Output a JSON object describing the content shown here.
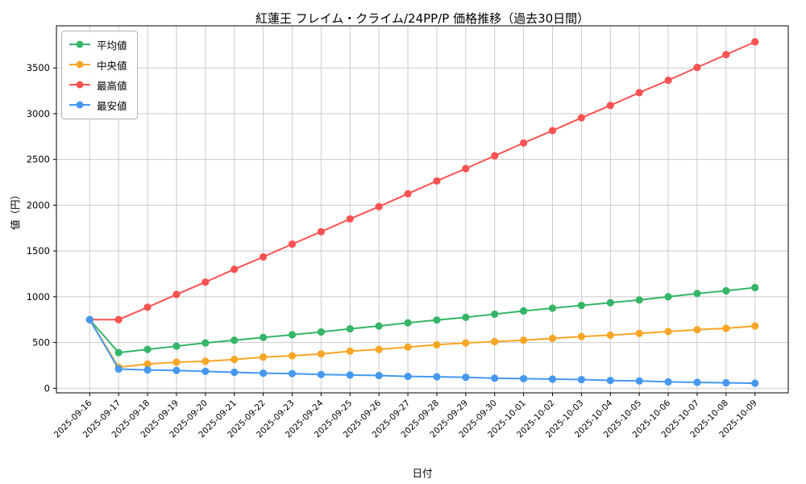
{
  "chart_data": {
    "type": "line",
    "title": "紅蓮王 フレイム・クライム/24PP/P 価格推移（過去30日間）",
    "xlabel": "日付",
    "ylabel": "値（円）",
    "grid": true,
    "legend_position": "upper-left",
    "ylim": [
      -50,
      3960
    ],
    "yticks": [
      0,
      500,
      1000,
      1500,
      2000,
      2500,
      3000,
      3500
    ],
    "x": [
      "2025-09-16",
      "2025-09-17",
      "2025-09-18",
      "2025-09-19",
      "2025-09-20",
      "2025-09-21",
      "2025-09-22",
      "2025-09-23",
      "2025-09-24",
      "2025-09-25",
      "2025-09-26",
      "2025-09-27",
      "2025-09-28",
      "2025-09-29",
      "2025-09-30",
      "2025-10-01",
      "2025-10-02",
      "2025-10-03",
      "2025-10-04",
      "2025-10-05",
      "2025-10-06",
      "2025-10-07",
      "2025-10-08",
      "2025-10-09"
    ],
    "series": [
      {
        "name": "平均値",
        "color": "#35b567",
        "values": [
          750,
          390,
          425,
          460,
          495,
          525,
          555,
          585,
          615,
          650,
          680,
          715,
          745,
          775,
          810,
          845,
          875,
          905,
          935,
          965,
          1000,
          1035,
          1065,
          1100
        ]
      },
      {
        "name": "中央値",
        "color": "#f8a626",
        "values": [
          750,
          230,
          265,
          285,
          295,
          315,
          340,
          355,
          375,
          405,
          425,
          450,
          475,
          495,
          510,
          525,
          545,
          565,
          580,
          600,
          620,
          640,
          655,
          680
        ]
      },
      {
        "name": "最高値",
        "color": "#fa5252",
        "values": [
          750,
          750,
          885,
          1025,
          1160,
          1300,
          1435,
          1575,
          1710,
          1850,
          1985,
          2125,
          2265,
          2400,
          2540,
          2680,
          2815,
          2955,
          3090,
          3230,
          3365,
          3505,
          3645,
          3785
        ]
      },
      {
        "name": "最安値",
        "color": "#4598f0",
        "values": [
          750,
          210,
          200,
          195,
          185,
          175,
          165,
          160,
          150,
          145,
          140,
          130,
          125,
          120,
          110,
          105,
          100,
          95,
          85,
          80,
          70,
          65,
          60,
          55
        ]
      }
    ]
  }
}
